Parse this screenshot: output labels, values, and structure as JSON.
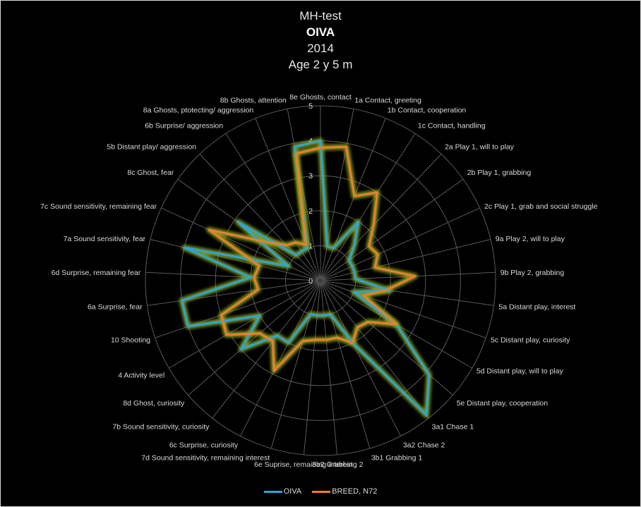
{
  "colors": {
    "background": "#000000",
    "grid": "#595959",
    "axis_text": "#d9d9d9",
    "oiva": "#2aa5d8",
    "breed": "#ed7d31",
    "glow": "#8faa1c"
  },
  "chart_data": {
    "type": "radar",
    "title_lines": [
      "MH-test",
      "OIVA",
      "2014",
      "Age 2 y 5 m"
    ],
    "rlim": [
      0,
      5
    ],
    "r_ticks": [
      "0",
      "1",
      "2",
      "3",
      "4",
      "5"
    ],
    "grid": true,
    "legend_position": "bottom",
    "categories": [
      "8e Ghosts, contact",
      "1a Contact, greeting",
      "1b Contact, cooperation",
      "1c Contact, handling",
      "2a Play 1, will to play",
      "2b Play 1, grabbing",
      "2c Play 1, grab and social struggle",
      "9a Play 2, will to play",
      "9b Play 2, grabbing",
      "5a Distant play, interest",
      "5c Distant play, curiosity",
      "5d Distant play, will to play",
      "5e Distant play, cooperation",
      "3a1 Chase 1",
      "3a2 Chase 2",
      "3b1 Grabbing 1",
      "3b2 Grabbing 2",
      "6e Suprise, remaining interest",
      "7d Sound sensitivity, remaining interest",
      "6c Surprise, curiosity",
      "7b Sound sensitivity, curiosity",
      "8d Ghost, curiosity",
      "4 Activity level",
      "10 Shooting",
      "6a Surprise, fear",
      "6d Surprise, remaining fear",
      "7a Sound sensitivity, fear",
      "7c Sound sensitivity, remaining fear",
      "8c Ghost, fear",
      "5b Distant play/ aggression",
      "6b Surprise/ aggression",
      "8a Ghosts, ptotecting/ aggression",
      "8b Ghosts, attention"
    ],
    "series": [
      {
        "name": "OIVA",
        "values": [
          4.0,
          1.0,
          1.0,
          2.0,
          1.4,
          1.0,
          1.0,
          1.0,
          1.0,
          2.0,
          1.0,
          2.5,
          4.1,
          4.9,
          2.0,
          1.0,
          1.0,
          1.0,
          1.0,
          2.0,
          2.0,
          3.0,
          2.0,
          4.0,
          4.0,
          2.0,
          4.0,
          1.0,
          2.9,
          1.0,
          1.0,
          1.0,
          3.9
        ]
      },
      {
        "name": "BREED, N72",
        "values": [
          3.8,
          3.9,
          2.6,
          3.0,
          2.2,
          1.7,
          1.8,
          1.6,
          2.7,
          1.9,
          1.3,
          2.5,
          1.8,
          1.7,
          2.0,
          1.7,
          1.7,
          1.7,
          1.8,
          2.9,
          2.2,
          2.3,
          3.1,
          3.0,
          1.8,
          1.9,
          1.8,
          3.5,
          1.9,
          1.4,
          1.3,
          1.1,
          3.7
        ]
      }
    ]
  }
}
